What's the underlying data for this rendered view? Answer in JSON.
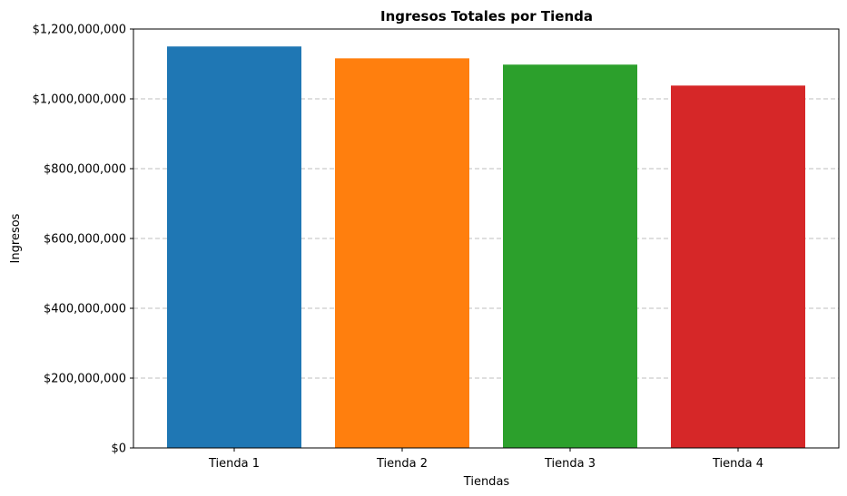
{
  "chart_data": {
    "type": "bar",
    "title": "Ingresos Totales por Tienda",
    "xlabel": "Tiendas",
    "ylabel": "Ingresos",
    "categories": [
      "Tienda 1",
      "Tienda 2",
      "Tienda 3",
      "Tienda 4"
    ],
    "values": [
      1150000000,
      1116000000,
      1098000000,
      1038000000
    ],
    "colors": [
      "#1f77b4",
      "#ff7f0e",
      "#2ca02c",
      "#d62728"
    ],
    "ylim": [
      0,
      1200000000
    ],
    "yticks": [
      0,
      200000000,
      400000000,
      600000000,
      800000000,
      1000000000,
      1200000000
    ],
    "ytick_labels": [
      "$0",
      "$200,000,000",
      "$400,000,000",
      "$600,000,000",
      "$800,000,000",
      "$1,000,000,000",
      "$1,200,000,000"
    ],
    "grid": "y-dashed",
    "legend": "none"
  }
}
